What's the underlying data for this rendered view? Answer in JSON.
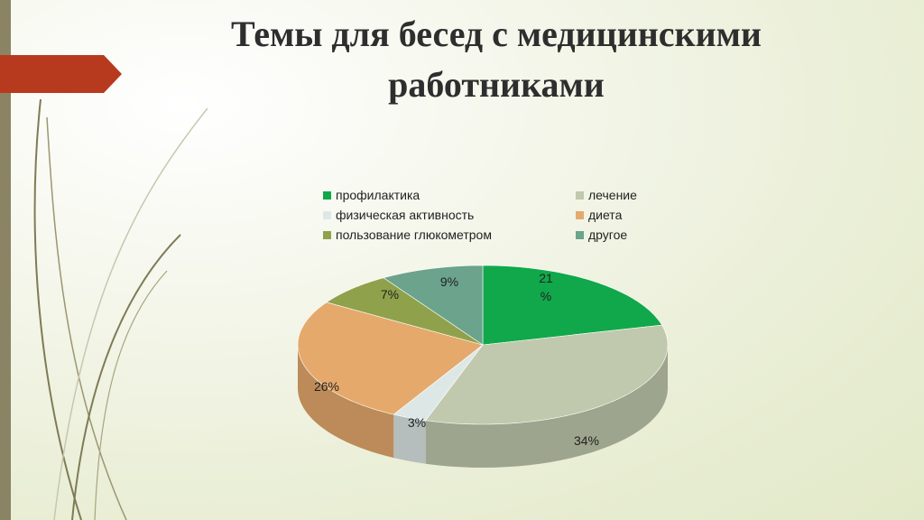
{
  "title": {
    "line1": "Темы для бесед с медицинскими",
    "line2": "работниками"
  },
  "chart_data": {
    "type": "pie",
    "title": "Темы для бесед с медицинскими работниками",
    "legend_position": "top",
    "slices": [
      {
        "label": "профилактика",
        "value": 21,
        "display": "21%",
        "color": "#10a84a"
      },
      {
        "label": "лечение",
        "value": 34,
        "display": "34%",
        "color": "#c0c9ad"
      },
      {
        "label": "физическая активность",
        "value": 3,
        "display": "3%",
        "color": "#dde8e6"
      },
      {
        "label": "диета",
        "value": 26,
        "display": "26%",
        "color": "#e5a96c"
      },
      {
        "label": "пользование глюкометром",
        "value": 7,
        "display": "7%",
        "color": "#8fa24b"
      },
      {
        "label": "другое",
        "value": 9,
        "display": "9%",
        "color": "#6ba38c"
      }
    ]
  },
  "decor": {
    "arrow_color": "#b83a1e",
    "bar_color": "#8a8465"
  }
}
